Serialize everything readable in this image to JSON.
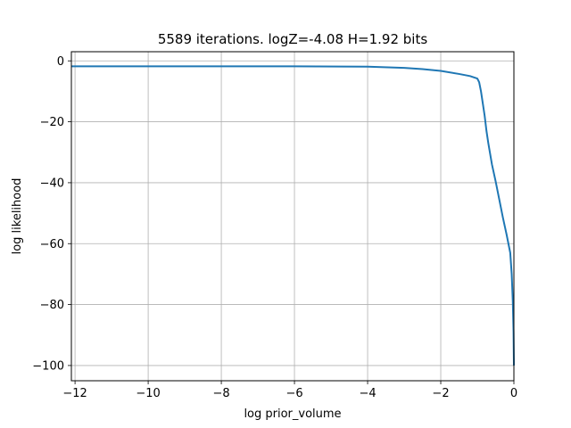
{
  "chart_data": {
    "type": "line",
    "title": "5589 iterations. logZ=-4.08 H=1.92 bits",
    "xlabel": "log prior_volume",
    "ylabel": "log likelihood",
    "xlim": [
      -12.1,
      0
    ],
    "ylim": [
      -105,
      3
    ],
    "xticks": [
      -12,
      -10,
      -8,
      -6,
      -4,
      -2,
      0
    ],
    "yticks": [
      0,
      -20,
      -40,
      -60,
      -80,
      -100
    ],
    "xtick_labels": [
      "−12",
      "−10",
      "−8",
      "−6",
      "−4",
      "−2",
      "0"
    ],
    "ytick_labels": [
      "0",
      "−20",
      "−40",
      "−60",
      "−80",
      "−100"
    ],
    "grid": true,
    "line_color": "#1f77b4",
    "series": [
      {
        "x": [
          -12.1,
          -10,
          -8,
          -6,
          -4,
          -3,
          -2.5,
          -2,
          -1.5,
          -1.2,
          -1.0,
          -0.95,
          -0.9,
          -0.85,
          -0.8,
          -0.75,
          -0.7,
          -0.6,
          -0.5,
          -0.4,
          -0.3,
          -0.2,
          -0.1,
          -0.06,
          -0.03,
          -0.01,
          0
        ],
        "y": [
          -1.8,
          -1.8,
          -1.8,
          -1.8,
          -1.9,
          -2.3,
          -2.7,
          -3.3,
          -4.3,
          -5.0,
          -5.8,
          -7.0,
          -10.0,
          -14.0,
          -18.0,
          -23.0,
          -27.0,
          -34.0,
          -39.5,
          -45.5,
          -51.5,
          -57.0,
          -63.0,
          -70.0,
          -79.0,
          -89.0,
          -100.0
        ]
      }
    ]
  }
}
